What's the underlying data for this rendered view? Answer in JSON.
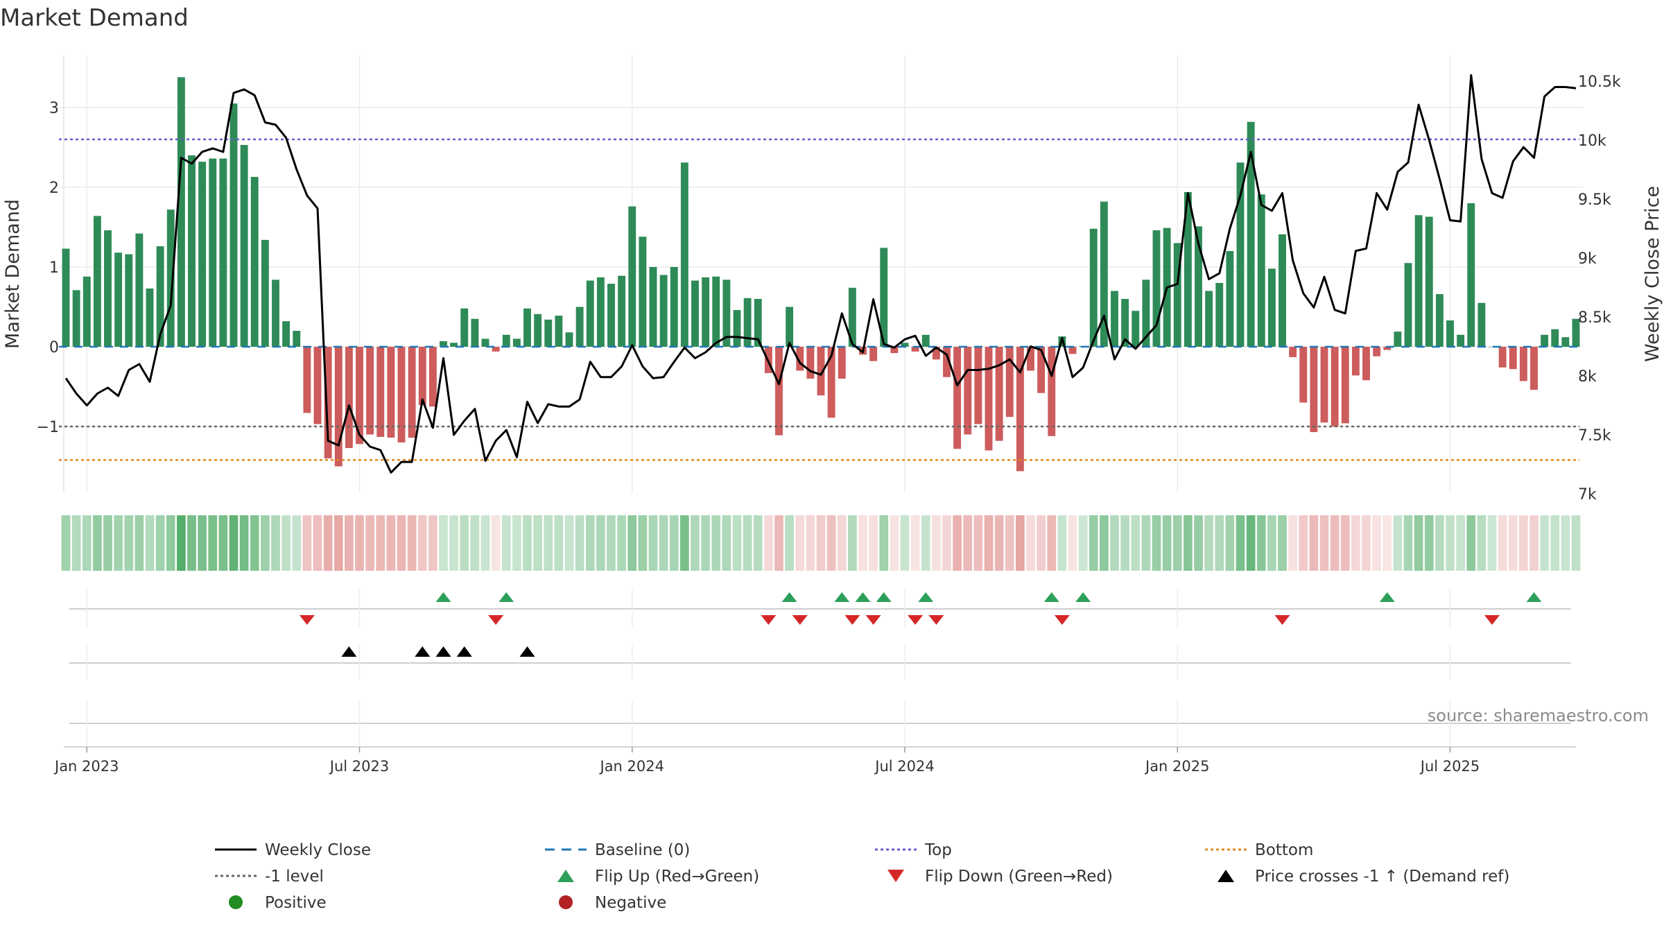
{
  "chart_data": {
    "type": "bar",
    "title": "Market Demand",
    "ylabel": "Market Demand",
    "y2label": "Weekly Close Price",
    "source": "source: sharemaestro.com",
    "ylim": [
      -1.85,
      3.65
    ],
    "y2lim": [
      7000,
      10800
    ],
    "yticks": [
      {
        "v": 3,
        "label": "3"
      },
      {
        "v": 2,
        "label": "2"
      },
      {
        "v": 1,
        "label": "1"
      },
      {
        "v": 0,
        "label": "0"
      },
      {
        "v": -1,
        "label": "−1"
      }
    ],
    "y2ticks": [
      {
        "v": 10500,
        "label": "10.5k"
      },
      {
        "v": 10000,
        "label": "10k"
      },
      {
        "v": 9500,
        "label": "9.5k"
      },
      {
        "v": 9000,
        "label": "9k"
      },
      {
        "v": 8500,
        "label": "8.5k"
      },
      {
        "v": 8000,
        "label": "8k"
      },
      {
        "v": 7500,
        "label": "7.5k"
      },
      {
        "v": 7000,
        "label": "7k"
      }
    ],
    "xticks": [
      {
        "i": 2,
        "label": "Jan 2023"
      },
      {
        "i": 28,
        "label": "Jul 2023"
      },
      {
        "i": 54,
        "label": "Jan 2024"
      },
      {
        "i": 80,
        "label": "Jul 2024"
      },
      {
        "i": 106,
        "label": "Jan 2025"
      },
      {
        "i": 132,
        "label": "Jul 2025"
      }
    ],
    "reference_lines": {
      "top": 2.6,
      "bottom": -1.42,
      "minus_one": -1,
      "baseline": 0
    },
    "demand": [
      1.23,
      0.71,
      0.88,
      1.64,
      1.46,
      1.18,
      1.16,
      1.42,
      0.73,
      1.26,
      1.72,
      3.38,
      2.4,
      2.32,
      2.36,
      2.36,
      3.05,
      2.53,
      2.13,
      1.34,
      0.84,
      0.32,
      0.2,
      -0.83,
      -0.97,
      -1.4,
      -1.5,
      -1.27,
      -1.22,
      -1.1,
      -1.13,
      -1.14,
      -1.2,
      -1.14,
      -0.73,
      -0.75,
      0.07,
      0.05,
      0.48,
      0.35,
      0.1,
      -0.06,
      0.15,
      0.1,
      0.48,
      0.41,
      0.34,
      0.39,
      0.18,
      0.5,
      0.83,
      0.87,
      0.79,
      0.89,
      1.76,
      1.38,
      1.0,
      0.9,
      1.0,
      2.31,
      0.83,
      0.87,
      0.88,
      0.84,
      0.46,
      0.61,
      0.6,
      -0.33,
      -1.11,
      0.5,
      -0.3,
      -0.4,
      -0.61,
      -0.89,
      -0.4,
      0.74,
      -0.1,
      -0.18,
      1.24,
      -0.08,
      0.05,
      -0.06,
      0.15,
      -0.16,
      -0.38,
      -1.28,
      -1.1,
      -0.97,
      -1.3,
      -1.18,
      -0.88,
      -1.56,
      -0.3,
      -0.58,
      -1.12,
      0.13,
      -0.09,
      0.01,
      1.48,
      1.82,
      0.7,
      0.6,
      0.45,
      0.84,
      1.46,
      1.49,
      1.3,
      1.94,
      1.51,
      0.7,
      0.8,
      1.2,
      2.31,
      2.82,
      1.91,
      0.98,
      1.41,
      -0.13,
      -0.7,
      -1.07,
      -0.95,
      -1.0,
      -0.96,
      -0.36,
      -0.42,
      -0.12,
      -0.04,
      0.19,
      1.05,
      1.65,
      1.63,
      0.66,
      0.33,
      0.15,
      1.8,
      0.55,
      0.0,
      -0.26,
      -0.28,
      -0.43,
      -0.54,
      0.15,
      0.22,
      0.12,
      0.35
    ],
    "price": [
      7980,
      7850,
      7750,
      7850,
      7900,
      7830,
      8050,
      8100,
      7950,
      8350,
      8600,
      9850,
      9800,
      9900,
      9930,
      9900,
      10400,
      10430,
      10380,
      10150,
      10130,
      10020,
      9750,
      9530,
      9420,
      7450,
      7410,
      7750,
      7500,
      7400,
      7370,
      7180,
      7270,
      7270,
      7800,
      7560,
      8150,
      7500,
      7620,
      7720,
      7280,
      7450,
      7540,
      7310,
      7780,
      7600,
      7760,
      7740,
      7740,
      7800,
      8120,
      7990,
      7990,
      8080,
      8260,
      8080,
      7980,
      7990,
      8120,
      8240,
      8150,
      8200,
      8280,
      8330,
      8330,
      8320,
      8310,
      8120,
      7930,
      8280,
      8110,
      8040,
      8010,
      8170,
      8530,
      8270,
      8200,
      8650,
      8270,
      8240,
      8310,
      8340,
      8170,
      8240,
      8180,
      7920,
      8050,
      8050,
      8060,
      8090,
      8140,
      8030,
      8250,
      8220,
      8000,
      8320,
      7990,
      8070,
      8300,
      8510,
      8140,
      8310,
      8230,
      8330,
      8430,
      8750,
      8780,
      9550,
      9120,
      8820,
      8870,
      9250,
      9530,
      9900,
      9450,
      9400,
      9550,
      8980,
      8700,
      8580,
      8840,
      8560,
      8530,
      9060,
      9080,
      9550,
      9410,
      9730,
      9810,
      10300,
      10000,
      9670,
      9320,
      9310,
      10550,
      9840,
      9550,
      9510,
      9820,
      9940,
      9850,
      10370,
      10450,
      10450,
      10440
    ],
    "flip_up": [
      36,
      42,
      69,
      74,
      76,
      78,
      82,
      94,
      97,
      126,
      140
    ],
    "flip_down": [
      23,
      41,
      67,
      70,
      75,
      77,
      81,
      83,
      95,
      116,
      136
    ],
    "price_crosses": [
      27,
      34,
      36,
      38,
      44
    ],
    "legend": [
      {
        "key": "weekly-close",
        "label": "Weekly Close",
        "kind": "line",
        "color": "#000000"
      },
      {
        "key": "baseline",
        "label": "Baseline (0)",
        "kind": "dash",
        "color": "#1f77b4"
      },
      {
        "key": "top",
        "label": "Top",
        "kind": "dot",
        "color": "#6a5acd"
      },
      {
        "key": "bottom",
        "label": "Bottom",
        "kind": "dot",
        "color": "#e08a1e"
      },
      {
        "key": "minus-one",
        "label": "-1 level",
        "kind": "dot",
        "color": "#666666"
      },
      {
        "key": "flip-up",
        "label": "Flip Up (Red→Green)",
        "kind": "tri-up",
        "color": "#2ca05a"
      },
      {
        "key": "flip-down",
        "label": "Flip Down (Green→Red)",
        "kind": "tri-down",
        "color": "#d62728"
      },
      {
        "key": "price-cross",
        "label": "Price crosses -1 ↑ (Demand ref)",
        "kind": "tri-up",
        "color": "#000000"
      },
      {
        "key": "positive",
        "label": "Positive",
        "kind": "circle",
        "color": "#228b22"
      },
      {
        "key": "negative",
        "label": "Negative",
        "kind": "circle",
        "color": "#b22222"
      }
    ],
    "colors": {
      "positive_bar": "#2e8b57",
      "negative_bar": "#cd5c5c"
    }
  }
}
